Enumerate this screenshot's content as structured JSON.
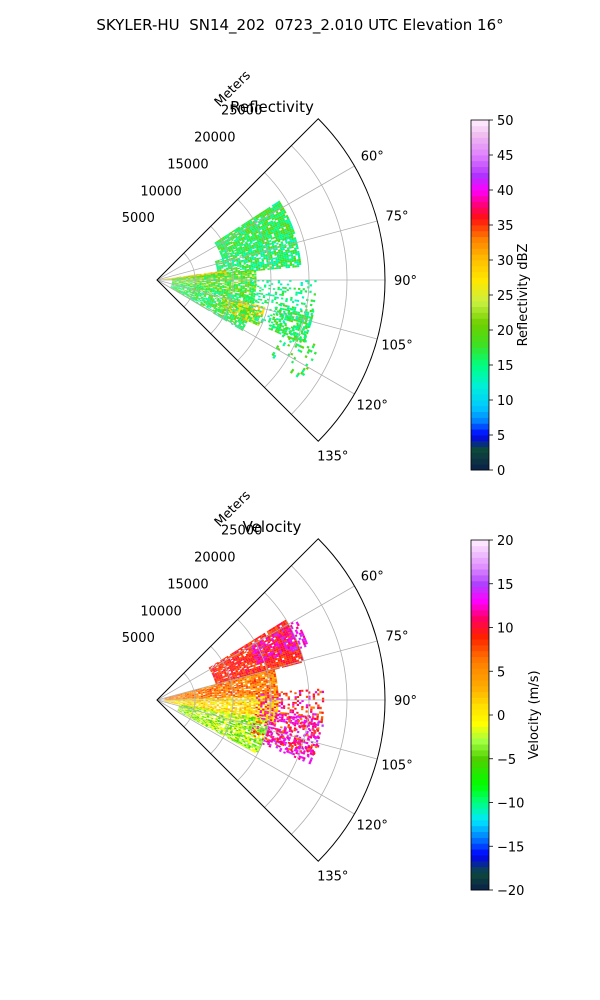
{
  "figure": {
    "suptitle": "SKYLER-HU  SN14_202  0723_2.010 UTC Elevation 16°"
  },
  "chart_data": [
    {
      "type": "polar_sector",
      "title": "Reflectivity",
      "radial_label": "Meters",
      "radial_ticks": [
        "5000",
        "10000",
        "15000",
        "20000",
        "25000"
      ],
      "radial_tick_values": [
        5000,
        10000,
        15000,
        20000,
        25000
      ],
      "rlim": [
        0,
        30000
      ],
      "theta_range_deg": [
        45,
        135
      ],
      "angle_ticks": [
        "60°",
        "75°",
        "90°",
        "105°",
        "120°",
        "135°"
      ],
      "angle_tick_values": [
        60,
        75,
        90,
        105,
        120,
        135
      ],
      "grid": true,
      "colorbar": {
        "label": "Reflectivity dBZ",
        "range": [
          0,
          50
        ],
        "ticks": [
          "0",
          "5",
          "10",
          "15",
          "20",
          "25",
          "30",
          "35",
          "40",
          "45",
          "50"
        ],
        "tick_values": [
          0,
          5,
          10,
          15,
          20,
          25,
          30,
          35,
          40,
          45,
          50
        ],
        "stops": [
          {
            "v": 0,
            "c": "#0b1f4a"
          },
          {
            "v": 3,
            "c": "#0d4a3a"
          },
          {
            "v": 5,
            "c": "#0000ff"
          },
          {
            "v": 7,
            "c": "#0080ff"
          },
          {
            "v": 9,
            "c": "#00c8ff"
          },
          {
            "v": 12,
            "c": "#00f0d8"
          },
          {
            "v": 15,
            "c": "#00ff80"
          },
          {
            "v": 18,
            "c": "#40e020"
          },
          {
            "v": 21,
            "c": "#70d000"
          },
          {
            "v": 24,
            "c": "#c8f040"
          },
          {
            "v": 27,
            "c": "#ffe800"
          },
          {
            "v": 30,
            "c": "#ffc000"
          },
          {
            "v": 33,
            "c": "#ff8000"
          },
          {
            "v": 36,
            "c": "#ff1010"
          },
          {
            "v": 38,
            "c": "#ff0080"
          },
          {
            "v": 40,
            "c": "#ff00ff"
          },
          {
            "v": 42,
            "c": "#b030ff"
          },
          {
            "v": 45,
            "c": "#e080ff"
          },
          {
            "v": 48,
            "c": "#f0c0f0"
          },
          {
            "v": 50,
            "c": "#fff0ff"
          }
        ]
      },
      "field": [
        {
          "theta": [
            57,
            72
          ],
          "r": [
            9000,
            19000
          ],
          "val": 17,
          "spread": 4,
          "density": 0.9
        },
        {
          "theta": [
            72,
            84
          ],
          "r": [
            8000,
            19000
          ],
          "val": 16,
          "spread": 4,
          "density": 0.8
        },
        {
          "theta": [
            82,
            88
          ],
          "r": [
            500,
            9000
          ],
          "val": 26,
          "spread": 6,
          "density": 0.95
        },
        {
          "theta": [
            84,
            100
          ],
          "r": [
            2000,
            13000
          ],
          "val": 19,
          "spread": 5,
          "density": 0.85
        },
        {
          "theta": [
            100,
            120
          ],
          "r": [
            2000,
            13000
          ],
          "val": 17,
          "spread": 4,
          "density": 0.8
        },
        {
          "theta": [
            101,
            113
          ],
          "r": [
            16000,
            21000
          ],
          "val": 17,
          "spread": 3,
          "density": 0.55
        },
        {
          "theta": [
            104,
            114
          ],
          "r": [
            9000,
            14500
          ],
          "val": 24,
          "spread": 8,
          "density": 0.7
        },
        {
          "theta": [
            90,
            112
          ],
          "r": [
            12000,
            21000
          ],
          "val": 15,
          "spread": 3,
          "density": 0.25
        },
        {
          "theta": [
            112,
            124
          ],
          "r": [
            18000,
            23000
          ],
          "val": 17,
          "spread": 4,
          "density": 0.2
        }
      ]
    },
    {
      "type": "polar_sector",
      "title": "Velocity",
      "radial_label": "Meters",
      "radial_ticks": [
        "5000",
        "10000",
        "15000",
        "20000",
        "25000"
      ],
      "radial_tick_values": [
        5000,
        10000,
        15000,
        20000,
        25000
      ],
      "rlim": [
        0,
        30000
      ],
      "theta_range_deg": [
        45,
        135
      ],
      "angle_ticks": [
        "60°",
        "75°",
        "90°",
        "105°",
        "120°",
        "135°"
      ],
      "angle_tick_values": [
        60,
        75,
        90,
        105,
        120,
        135
      ],
      "grid": true,
      "colorbar": {
        "label": "Velocity (m/s)",
        "range": [
          -20,
          20
        ],
        "ticks": [
          "−20",
          "−15",
          "−10",
          "−5",
          "0",
          "5",
          "10",
          "15",
          "20"
        ],
        "tick_values": [
          -20,
          -15,
          -10,
          -5,
          0,
          5,
          10,
          15,
          20
        ],
        "stops": [
          {
            "v": -20,
            "c": "#0b1f4a"
          },
          {
            "v": -18,
            "c": "#0d4a3a"
          },
          {
            "v": -16,
            "c": "#0000ff"
          },
          {
            "v": -14,
            "c": "#0080ff"
          },
          {
            "v": -12,
            "c": "#00e8ff"
          },
          {
            "v": -10,
            "c": "#00ff80"
          },
          {
            "v": -8,
            "c": "#00ff00"
          },
          {
            "v": -5,
            "c": "#50d000"
          },
          {
            "v": -3,
            "c": "#a0ff40"
          },
          {
            "v": -1,
            "c": "#ffff00"
          },
          {
            "v": 1,
            "c": "#ffe000"
          },
          {
            "v": 3,
            "c": "#ffb000"
          },
          {
            "v": 6,
            "c": "#ff8000"
          },
          {
            "v": 9,
            "c": "#ff2000"
          },
          {
            "v": 11,
            "c": "#ff0060"
          },
          {
            "v": 13,
            "c": "#ff00ff"
          },
          {
            "v": 15,
            "c": "#b040ff"
          },
          {
            "v": 17,
            "c": "#e090ff"
          },
          {
            "v": 20,
            "c": "#fff0ff"
          }
        ]
      },
      "field": [
        {
          "theta": [
            58,
            75
          ],
          "r": [
            8000,
            20000
          ],
          "val": 9,
          "spread": 2,
          "density": 0.9
        },
        {
          "theta": [
            75,
            88
          ],
          "r": [
            1000,
            16000
          ],
          "val": 6,
          "spread": 3,
          "density": 0.9
        },
        {
          "theta": [
            88,
            102
          ],
          "r": [
            1000,
            16000
          ],
          "val": 1,
          "spread": 3,
          "density": 0.85
        },
        {
          "theta": [
            100,
            118
          ],
          "r": [
            3000,
            15000
          ],
          "val": -3,
          "spread": 3,
          "density": 0.8
        },
        {
          "theta": [
            60,
            70
          ],
          "r": [
            14000,
            21000
          ],
          "val": 13,
          "spread": 2,
          "density": 0.5
        },
        {
          "theta": [
            96,
            112
          ],
          "r": [
            15000,
            22000
          ],
          "val": 13,
          "spread": 2,
          "density": 0.4
        },
        {
          "theta": [
            86,
            110
          ],
          "r": [
            13000,
            22000
          ],
          "val": 10,
          "spread": 4,
          "density": 0.3
        }
      ]
    }
  ]
}
